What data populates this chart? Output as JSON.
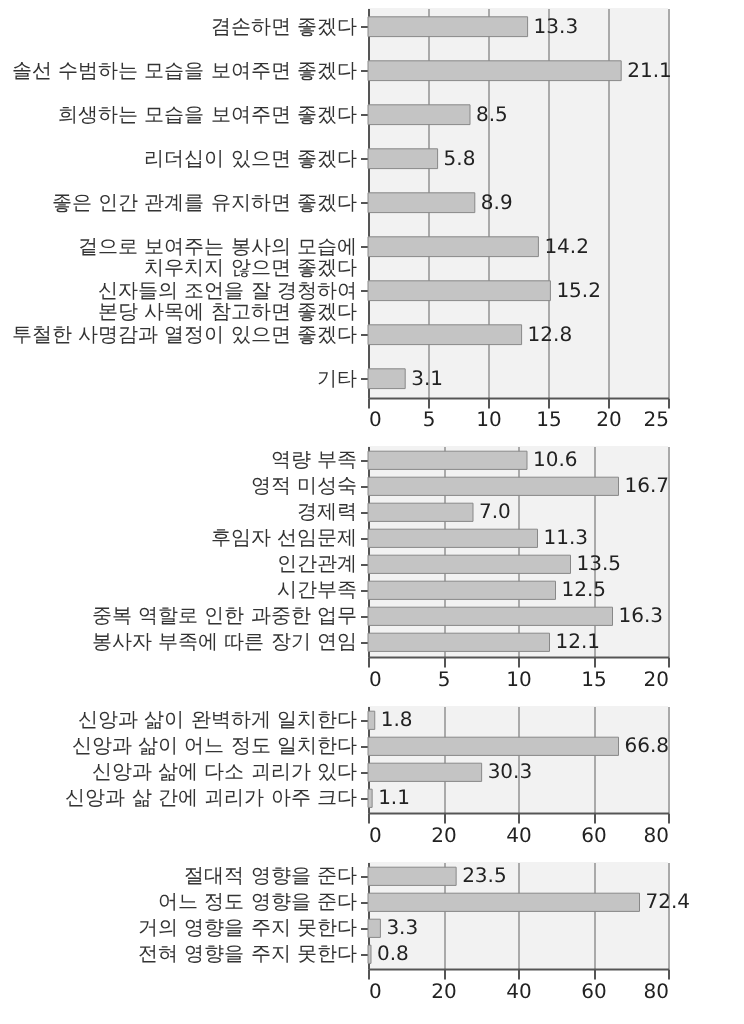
{
  "chart_data": [
    {
      "type": "bar",
      "orientation": "horizontal",
      "categories": [
        "겸손하면 좋겠다",
        "솔선 수범하는 모습을 보여주면 좋겠다",
        "희생하는 모습을 보여주면 좋겠다",
        "리더십이 있으면 좋겠다",
        "좋은 인간 관계를 유지하면 좋겠다",
        "겉으로 보여주는 봉사의 모습에 치우치지 않으면 좋겠다",
        "신자들의 조언을 잘 경청하여 본당 사목에 참고하면 좋겠다",
        "투철한 사명감과 열정이 있으면 좋겠다",
        "기타"
      ],
      "values": [
        13.3,
        21.1,
        8.5,
        5.8,
        8.9,
        14.2,
        15.2,
        12.8,
        3.1
      ],
      "color": "#c4c4c4",
      "xlim": [
        0,
        25
      ],
      "xticks": [
        0,
        5,
        10,
        15,
        20,
        25
      ],
      "grid": "x",
      "data_labels": true
    },
    {
      "type": "bar",
      "orientation": "horizontal",
      "categories": [
        "역량 부족",
        "영적 미성숙",
        "경제력",
        "후임자 선임문제",
        "인간관계",
        "시간부족",
        "중복 역할로 인한 과중한 업무",
        "봉사자 부족에 따른 장기 연임"
      ],
      "values": [
        10.6,
        16.7,
        7.0,
        11.3,
        13.5,
        12.5,
        16.3,
        12.1
      ],
      "value_labels": [
        "10.6",
        "16.7",
        "7.0",
        "11.3",
        "13.5",
        "12.5",
        "16.3",
        "12.1"
      ],
      "color": "#c4c4c4",
      "xlim": [
        0,
        20
      ],
      "xticks": [
        0,
        5,
        10,
        15,
        20
      ],
      "grid": "x"
    },
    {
      "type": "bar",
      "orientation": "horizontal",
      "categories": [
        "신앙과 삶이 완벽하게 일치한다",
        "신앙과 삶이 어느 정도 일치한다",
        "신앙과 삶에 다소 괴리가 있다",
        "신앙과 삶 간에 괴리가 아주 크다"
      ],
      "values": [
        1.8,
        66.8,
        30.3,
        1.1
      ],
      "color": "#c4c4c4",
      "xlim": [
        0,
        80
      ],
      "xticks": [
        0,
        20,
        40,
        60,
        80
      ],
      "grid": "x",
      "data_labels": true
    },
    {
      "type": "bar",
      "orientation": "horizontal",
      "categories": [
        "절대적 영향을 준다",
        "어느 정도 영향을 준다",
        "거의 영향을 주지 못한다",
        "전혀 영향을 주지 못한다"
      ],
      "values": [
        23.5,
        72.4,
        3.3,
        0.8
      ],
      "color": "#c4c4c4",
      "xlim": [
        0,
        80
      ],
      "xticks": [
        0,
        20,
        40,
        60,
        80
      ],
      "grid": "x",
      "data_labels": true
    }
  ]
}
